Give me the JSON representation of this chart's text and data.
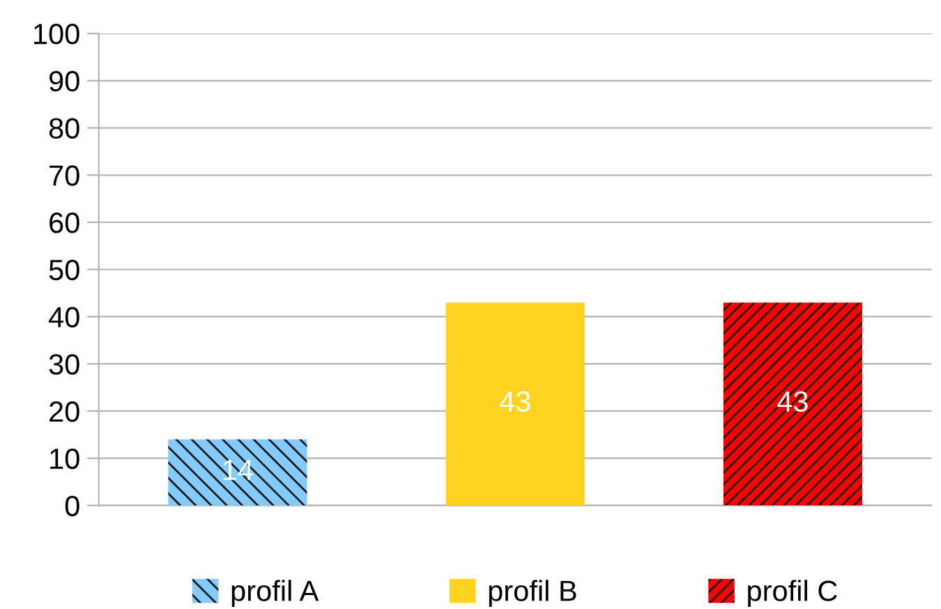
{
  "chart_data": {
    "type": "bar",
    "categories": [
      null,
      null,
      null
    ],
    "series": [
      {
        "name": "profil A",
        "color": "#83caff",
        "values": [
          14,
          null,
          null
        ]
      },
      {
        "name": "profil B",
        "color": "#ffd320",
        "values": [
          null,
          43,
          null
        ]
      },
      {
        "name": "profil C",
        "color": "#ff0000",
        "values": [
          null,
          null,
          43
        ]
      }
    ],
    "ylim": [
      0,
      100
    ],
    "yticks": [
      0,
      10,
      20,
      30,
      40,
      50,
      60,
      70,
      80,
      90,
      100
    ],
    "grid": "y",
    "legend": "bottom",
    "data_labels": true
  }
}
